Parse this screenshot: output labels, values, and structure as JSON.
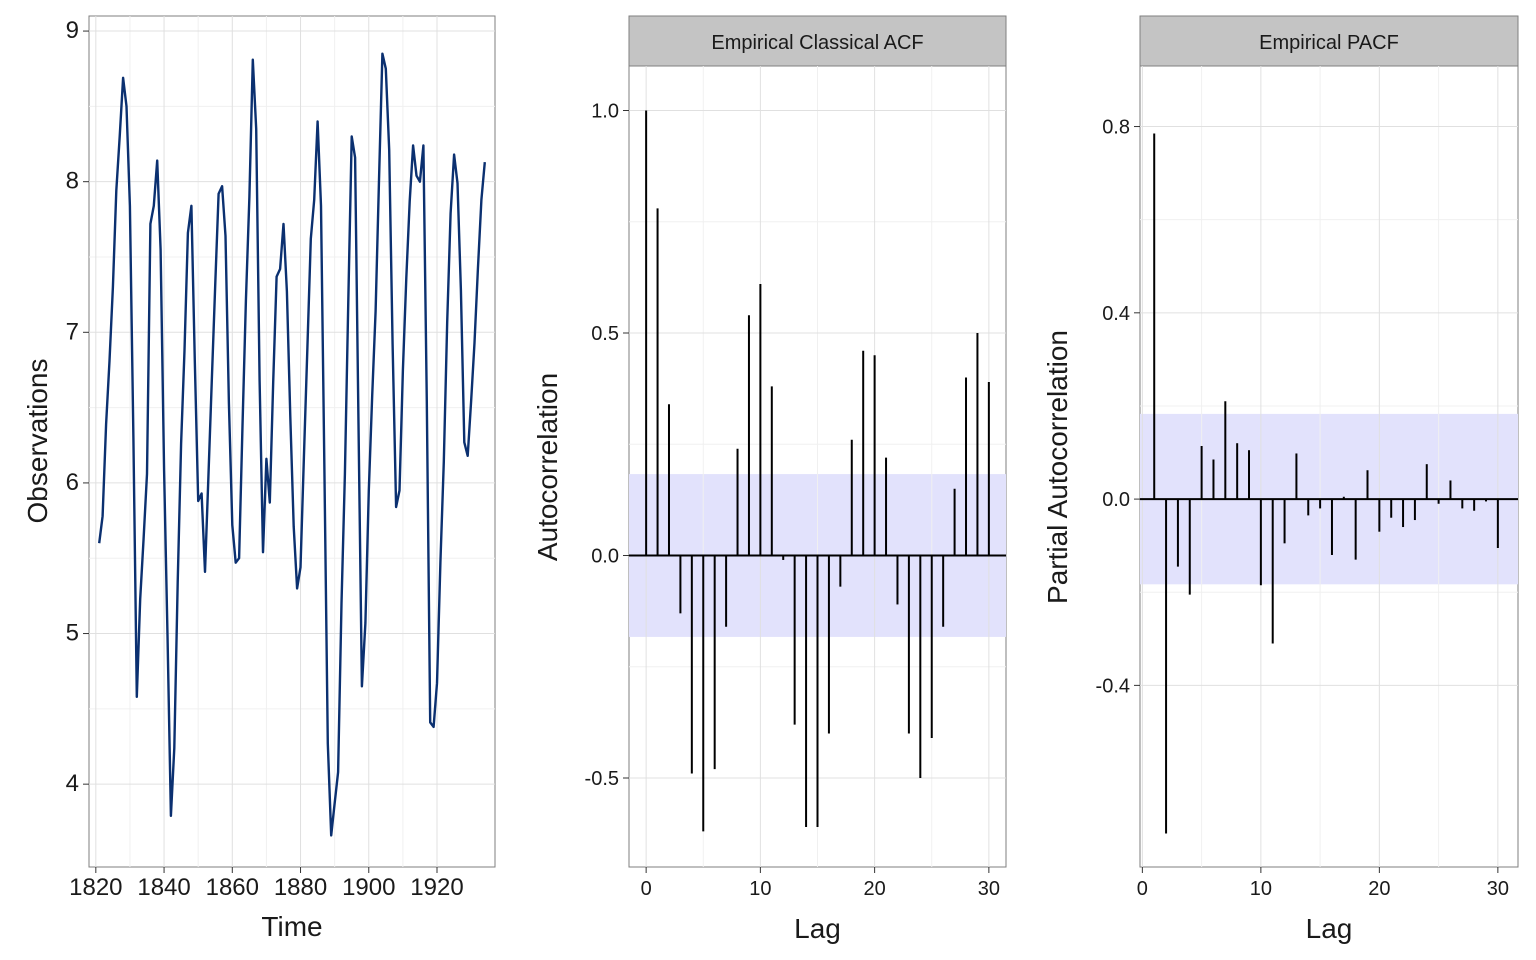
{
  "chart_data": [
    {
      "type": "line",
      "title": "",
      "xlabel": "Time",
      "ylabel": "Observations",
      "xlim": [
        1818,
        1937
      ],
      "ylim": [
        3.45,
        9.1
      ],
      "xticks": [
        1820,
        1840,
        1860,
        1880,
        1900,
        1920
      ],
      "yticks": [
        4,
        5,
        6,
        7,
        8,
        9
      ],
      "grid": true,
      "line_color": "#0b3070",
      "x": [
        1821,
        1822,
        1823,
        1824,
        1825,
        1826,
        1827,
        1828,
        1829,
        1830,
        1831,
        1832,
        1833,
        1834,
        1835,
        1836,
        1837,
        1838,
        1839,
        1840,
        1841,
        1842,
        1843,
        1844,
        1845,
        1846,
        1847,
        1848,
        1849,
        1850,
        1851,
        1852,
        1853,
        1854,
        1855,
        1856,
        1857,
        1858,
        1859,
        1860,
        1861,
        1862,
        1863,
        1864,
        1865,
        1866,
        1867,
        1868,
        1869,
        1870,
        1871,
        1872,
        1873,
        1874,
        1875,
        1876,
        1877,
        1878,
        1879,
        1880,
        1881,
        1882,
        1883,
        1884,
        1885,
        1886,
        1887,
        1888,
        1889,
        1890,
        1891,
        1892,
        1893,
        1894,
        1895,
        1896,
        1897,
        1898,
        1899,
        1900,
        1901,
        1902,
        1903,
        1904,
        1905,
        1906,
        1907,
        1908,
        1909,
        1910,
        1911,
        1912,
        1913,
        1914,
        1915,
        1916,
        1917,
        1918,
        1919,
        1920,
        1921,
        1922,
        1923,
        1924,
        1925,
        1926,
        1927,
        1928,
        1929,
        1930,
        1931,
        1932,
        1933,
        1934
      ],
      "y": [
        5.6,
        5.78,
        6.39,
        6.81,
        7.3,
        7.94,
        8.3,
        8.69,
        8.5,
        7.84,
        6.3,
        4.58,
        5.23,
        5.63,
        6.06,
        7.72,
        7.84,
        8.14,
        7.55,
        6.08,
        4.99,
        3.79,
        4.24,
        5.34,
        6.26,
        6.88,
        7.66,
        7.84,
        6.81,
        5.88,
        5.93,
        5.41,
        6.04,
        6.68,
        7.31,
        7.92,
        7.97,
        7.64,
        6.53,
        5.72,
        5.47,
        5.5,
        6.38,
        7.21,
        7.9,
        8.81,
        8.35,
        6.68,
        5.54,
        6.16,
        5.87,
        6.67,
        7.37,
        7.42,
        7.72,
        7.27,
        6.44,
        5.71,
        5.3,
        5.44,
        6.17,
        6.9,
        7.62,
        7.88,
        8.4,
        7.84,
        6.09,
        4.27,
        3.66,
        3.87,
        4.08,
        5.2,
        6.06,
        7.21,
        8.3,
        8.16,
        6.39,
        4.65,
        5.07,
        5.95,
        6.58,
        7.14,
        8.01,
        8.85,
        8.75,
        8.21,
        6.92,
        5.84,
        5.95,
        6.75,
        7.36,
        7.87,
        8.24,
        8.04,
        8.0,
        8.24,
        6.54,
        4.41,
        4.38,
        4.67,
        5.47,
        6.14,
        7.07,
        7.79,
        8.18,
        7.99,
        7.28,
        6.27,
        6.18,
        6.54,
        6.93,
        7.42,
        7.88,
        8.13
      ]
    },
    {
      "type": "bar",
      "panel_label": "Empirical Classical ACF",
      "xlabel": "Lag",
      "ylabel": "Autocorrelation",
      "xlim": [
        -1.5,
        31.5
      ],
      "ylim": [
        -0.7,
        1.1
      ],
      "xticks": [
        0,
        10,
        20,
        30
      ],
      "yticks": [
        -0.5,
        0.0,
        0.5,
        1.0
      ],
      "ytick_labels": [
        "-0.5",
        "0.0",
        "0.5",
        "1.0"
      ],
      "confidence_band": [
        -0.183,
        0.183
      ],
      "grid": true,
      "lags": [
        0,
        1,
        2,
        3,
        4,
        5,
        6,
        7,
        8,
        9,
        10,
        11,
        12,
        13,
        14,
        15,
        16,
        17,
        18,
        19,
        20,
        21,
        22,
        23,
        24,
        25,
        26,
        27,
        28,
        29,
        30
      ],
      "values": [
        1.0,
        0.78,
        0.34,
        -0.13,
        -0.49,
        -0.62,
        -0.48,
        -0.16,
        0.24,
        0.54,
        0.61,
        0.38,
        -0.01,
        -0.38,
        -0.61,
        -0.61,
        -0.4,
        -0.07,
        0.26,
        0.46,
        0.45,
        0.22,
        -0.11,
        -0.4,
        -0.5,
        -0.41,
        -0.16,
        0.15,
        0.4,
        0.5,
        0.39
      ]
    },
    {
      "type": "bar",
      "panel_label": "Empirical PACF",
      "xlabel": "Lag",
      "ylabel": "Partial Autocorrelation",
      "xlim": [
        -0.2,
        31.7
      ],
      "ylim": [
        -0.79,
        0.93
      ],
      "xticks": [
        0,
        10,
        20,
        30
      ],
      "yticks": [
        -0.4,
        0.0,
        0.4,
        0.8
      ],
      "ytick_labels": [
        "-0.4",
        "0.0",
        "0.4",
        "0.8"
      ],
      "confidence_band": [
        -0.183,
        0.183
      ],
      "grid": true,
      "lags": [
        1,
        2,
        3,
        4,
        5,
        6,
        7,
        8,
        9,
        10,
        11,
        12,
        13,
        14,
        15,
        16,
        17,
        18,
        19,
        20,
        21,
        22,
        23,
        24,
        25,
        26,
        27,
        28,
        29,
        30
      ],
      "values": [
        0.785,
        -0.718,
        -0.145,
        -0.205,
        0.114,
        0.085,
        0.21,
        0.12,
        0.105,
        -0.185,
        -0.31,
        -0.095,
        0.098,
        -0.035,
        -0.02,
        -0.12,
        0.005,
        -0.13,
        0.062,
        -0.07,
        -0.04,
        -0.06,
        -0.045,
        0.075,
        -0.01,
        0.04,
        -0.02,
        -0.025,
        -0.005,
        -0.105
      ]
    }
  ]
}
